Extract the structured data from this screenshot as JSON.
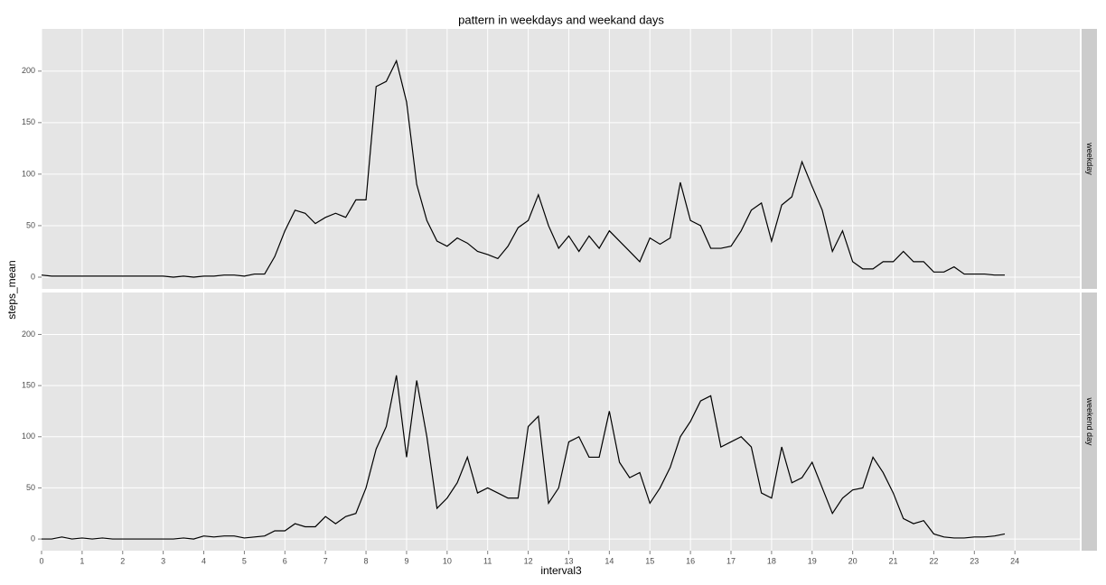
{
  "chart_data": [
    {
      "type": "line",
      "title": "pattern in weekdays and weekand days",
      "ylabel": "steps_mean",
      "strip": "weekday",
      "color": "#000000",
      "x": [
        0,
        0.25,
        0.5,
        0.75,
        1,
        1.25,
        1.5,
        1.75,
        2,
        2.25,
        2.5,
        2.75,
        3,
        3.25,
        3.5,
        3.75,
        4,
        4.25,
        4.5,
        4.75,
        5,
        5.25,
        5.5,
        5.75,
        6,
        6.25,
        6.5,
        6.75,
        7,
        7.25,
        7.5,
        7.75,
        8,
        8.25,
        8.5,
        8.75,
        9,
        9.25,
        9.5,
        9.75,
        10,
        10.25,
        10.5,
        10.75,
        11,
        11.25,
        11.5,
        11.75,
        12,
        12.25,
        12.5,
        12.75,
        13,
        13.25,
        13.5,
        13.75,
        14,
        14.25,
        14.5,
        14.75,
        15,
        15.25,
        15.5,
        15.75,
        16,
        16.25,
        16.5,
        16.75,
        17,
        17.25,
        17.5,
        17.75,
        18,
        18.25,
        18.5,
        18.75,
        19,
        19.25,
        19.5,
        19.75,
        20,
        20.25,
        20.5,
        20.75,
        21,
        21.25,
        21.5,
        21.75,
        22,
        22.25,
        22.5,
        22.75,
        23,
        23.25,
        23.5,
        23.75
      ],
      "values": [
        2,
        1,
        1,
        1,
        1,
        1,
        1,
        1,
        1,
        1,
        1,
        1,
        1,
        0,
        1,
        0,
        1,
        1,
        2,
        2,
        1,
        3,
        3,
        20,
        45,
        65,
        62,
        52,
        58,
        62,
        58,
        75,
        75,
        185,
        190,
        210,
        170,
        90,
        55,
        35,
        30,
        38,
        33,
        25,
        22,
        18,
        30,
        48,
        55,
        80,
        50,
        28,
        40,
        25,
        40,
        28,
        45,
        35,
        25,
        15,
        38,
        32,
        38,
        92,
        55,
        50,
        28,
        28,
        30,
        45,
        65,
        72,
        35,
        70,
        78,
        112,
        88,
        65,
        25,
        45,
        15,
        8,
        8,
        15,
        15,
        25,
        15,
        15,
        5,
        5,
        10,
        3,
        3,
        3,
        2,
        2
      ],
      "xlim": [
        0,
        25.6
      ],
      "ylim": [
        -11.4,
        241
      ],
      "yticks": [
        0,
        50,
        100,
        150,
        200
      ],
      "grid": true
    },
    {
      "type": "line",
      "xlabel": "interval3",
      "strip": "weekend day",
      "color": "#000000",
      "x": [
        0,
        0.25,
        0.5,
        0.75,
        1,
        1.25,
        1.5,
        1.75,
        2,
        2.25,
        2.5,
        2.75,
        3,
        3.25,
        3.5,
        3.75,
        4,
        4.25,
        4.5,
        4.75,
        5,
        5.25,
        5.5,
        5.75,
        6,
        6.25,
        6.5,
        6.75,
        7,
        7.25,
        7.5,
        7.75,
        8,
        8.25,
        8.5,
        8.75,
        9,
        9.25,
        9.5,
        9.75,
        10,
        10.25,
        10.5,
        10.75,
        11,
        11.25,
        11.5,
        11.75,
        12,
        12.25,
        12.5,
        12.75,
        13,
        13.25,
        13.5,
        13.75,
        14,
        14.25,
        14.5,
        14.75,
        15,
        15.25,
        15.5,
        15.75,
        16,
        16.25,
        16.5,
        16.75,
        17,
        17.25,
        17.5,
        17.75,
        18,
        18.25,
        18.5,
        18.75,
        19,
        19.25,
        19.5,
        19.75,
        20,
        20.25,
        20.5,
        20.75,
        21,
        21.25,
        21.5,
        21.75,
        22,
        22.25,
        22.5,
        22.75,
        23,
        23.25,
        23.5,
        23.75
      ],
      "values": [
        0,
        0,
        2,
        0,
        1,
        0,
        1,
        0,
        0,
        0,
        0,
        0,
        0,
        0,
        1,
        0,
        3,
        2,
        3,
        3,
        1,
        2,
        3,
        8,
        8,
        15,
        12,
        12,
        22,
        15,
        22,
        25,
        50,
        88,
        110,
        160,
        80,
        155,
        100,
        30,
        40,
        55,
        80,
        45,
        50,
        45,
        40,
        40,
        110,
        120,
        35,
        50,
        95,
        100,
        80,
        80,
        125,
        75,
        60,
        65,
        35,
        50,
        70,
        100,
        115,
        135,
        140,
        90,
        95,
        100,
        90,
        45,
        40,
        90,
        55,
        60,
        75,
        50,
        25,
        40,
        48,
        50,
        80,
        65,
        45,
        20,
        15,
        18,
        5,
        2,
        1,
        1,
        2,
        2,
        3,
        5
      ],
      "xlim": [
        0,
        25.6
      ],
      "ylim": [
        -11.4,
        241
      ],
      "yticks": [
        0,
        50,
        100,
        150,
        200
      ],
      "xticks": [
        0,
        1,
        2,
        3,
        4,
        5,
        6,
        7,
        8,
        9,
        10,
        11,
        12,
        13,
        14,
        15,
        16,
        17,
        18,
        19,
        20,
        21,
        22,
        23,
        24
      ],
      "grid": true
    }
  ]
}
